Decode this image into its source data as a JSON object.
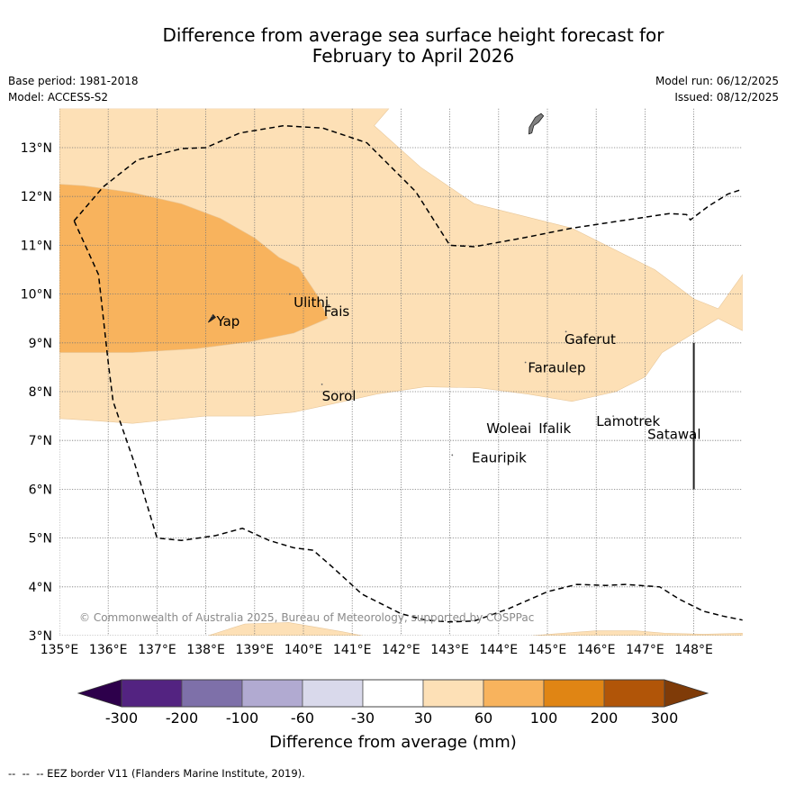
{
  "title": {
    "line1": "Difference from average sea surface height forecast for",
    "line2": "February to April 2026"
  },
  "meta": {
    "base_period": "Base period: 1981-2018",
    "model": "Model: ACCESS-S2",
    "model_run": "Model run: 06/12/2025",
    "issued": "Issued: 08/12/2025"
  },
  "footer": "--  --  -- EEZ border V11 (Flanders Marine Institute, 2019).",
  "chart_data": {
    "type": "heatmap",
    "title": "Difference from average sea surface height forecast for February to April 2026",
    "extent": {
      "lon": [
        135,
        149
      ],
      "lat": [
        3,
        13.8
      ]
    },
    "grid": true,
    "x_ticks": [
      {
        "value": 135,
        "label": "135°E"
      },
      {
        "value": 136,
        "label": "136°E"
      },
      {
        "value": 137,
        "label": "137°E"
      },
      {
        "value": 138,
        "label": "138°E"
      },
      {
        "value": 139,
        "label": "139°E"
      },
      {
        "value": 140,
        "label": "140°E"
      },
      {
        "value": 141,
        "label": "141°E"
      },
      {
        "value": 142,
        "label": "142°E"
      },
      {
        "value": 143,
        "label": "143°E"
      },
      {
        "value": 144,
        "label": "144°E"
      },
      {
        "value": 145,
        "label": "145°E"
      },
      {
        "value": 146,
        "label": "146°E"
      },
      {
        "value": 147,
        "label": "147°E"
      },
      {
        "value": 148,
        "label": "148°E"
      }
    ],
    "y_ticks": [
      {
        "value": 13,
        "label": "13°N"
      },
      {
        "value": 12,
        "label": "12°N"
      },
      {
        "value": 11,
        "label": "11°N"
      },
      {
        "value": 10,
        "label": "10°N"
      },
      {
        "value": 9,
        "label": "9°N"
      },
      {
        "value": 8,
        "label": "8°N"
      },
      {
        "value": 7,
        "label": "7°N"
      },
      {
        "value": 6,
        "label": "6°N"
      },
      {
        "value": 5,
        "label": "5°N"
      },
      {
        "value": 4,
        "label": "4°N"
      },
      {
        "value": 3,
        "label": "3°N"
      }
    ],
    "regions": [
      {
        "name": "30-60mm-north",
        "category": "30 to 60",
        "color": "#fde0b6",
        "polygon": [
          [
            135,
            13.8
          ],
          [
            141.75,
            13.8
          ],
          [
            141.45,
            13.45
          ],
          [
            142.4,
            12.6
          ],
          [
            143.5,
            11.85
          ],
          [
            145.5,
            11.35
          ],
          [
            147.2,
            10.5
          ],
          [
            148.0,
            9.9
          ],
          [
            148.5,
            9.7
          ],
          [
            149,
            10.4
          ],
          [
            149,
            9.25
          ],
          [
            148.5,
            9.5
          ],
          [
            148.0,
            9.2
          ],
          [
            147.35,
            8.8
          ],
          [
            147.0,
            8.3
          ],
          [
            146.4,
            8.0
          ],
          [
            145.5,
            7.8
          ],
          [
            144.6,
            7.95
          ],
          [
            143.6,
            8.08
          ],
          [
            142.5,
            8.1
          ],
          [
            141.5,
            7.95
          ],
          [
            140.6,
            7.75
          ],
          [
            139.8,
            7.58
          ],
          [
            139.0,
            7.5
          ],
          [
            138.0,
            7.5
          ],
          [
            137.0,
            7.4
          ],
          [
            136.5,
            7.35
          ],
          [
            135.5,
            7.42
          ],
          [
            135,
            7.45
          ]
        ]
      },
      {
        "name": "60-100mm",
        "category": "60 to 100",
        "color": "#f8b35d",
        "polygon": [
          [
            135,
            12.25
          ],
          [
            135.5,
            12.22
          ],
          [
            136.5,
            12.08
          ],
          [
            137.5,
            11.85
          ],
          [
            138.3,
            11.55
          ],
          [
            139.0,
            11.15
          ],
          [
            139.5,
            10.75
          ],
          [
            139.9,
            10.55
          ],
          [
            140.3,
            9.95
          ],
          [
            140.5,
            9.5
          ],
          [
            139.8,
            9.2
          ],
          [
            138.9,
            9.02
          ],
          [
            137.8,
            8.88
          ],
          [
            136.5,
            8.8
          ],
          [
            135.6,
            8.8
          ],
          [
            135,
            8.8
          ]
        ]
      },
      {
        "name": "30-60mm-south-west",
        "category": "30 to 60",
        "color": "#fde0b6",
        "polygon": [
          [
            138.05,
            3
          ],
          [
            138.8,
            3.24
          ],
          [
            139.7,
            3.27
          ],
          [
            140.8,
            3.08
          ],
          [
            141.2,
            3
          ]
        ]
      },
      {
        "name": "30-60mm-south-east",
        "category": "30 to 60",
        "color": "#fde0b6",
        "polygon": [
          [
            144.7,
            3
          ],
          [
            145.2,
            3.04
          ],
          [
            146.0,
            3.1
          ],
          [
            146.8,
            3.1
          ],
          [
            147.4,
            3.05
          ],
          [
            148.2,
            3.03
          ],
          [
            149,
            3.05
          ],
          [
            149,
            3
          ]
        ]
      }
    ],
    "eez_borders": [
      {
        "name": "eez-line-north",
        "points": [
          [
            135.3,
            11.5
          ],
          [
            135.9,
            12.2
          ],
          [
            136.6,
            12.75
          ],
          [
            137.5,
            12.98
          ],
          [
            138.0,
            13.0
          ],
          [
            138.7,
            13.3
          ],
          [
            139.6,
            13.45
          ],
          [
            140.4,
            13.4
          ],
          [
            141.3,
            13.1
          ],
          [
            142.3,
            12.1
          ],
          [
            143.0,
            11.0
          ],
          [
            143.5,
            10.97
          ],
          [
            144.5,
            11.15
          ],
          [
            145.5,
            11.35
          ],
          [
            146.5,
            11.5
          ],
          [
            147.5,
            11.65
          ],
          [
            147.85,
            11.63
          ],
          [
            147.93,
            11.52
          ],
          [
            148.3,
            11.8
          ],
          [
            148.7,
            12.05
          ],
          [
            149,
            12.15
          ]
        ]
      },
      {
        "name": "eez-line-west-south",
        "points": [
          [
            135.3,
            11.5
          ],
          [
            135.8,
            10.4
          ],
          [
            136.0,
            8.6
          ],
          [
            136.1,
            7.8
          ],
          [
            136.55,
            6.5
          ],
          [
            137.0,
            5.0
          ],
          [
            137.5,
            4.95
          ],
          [
            138.2,
            5.05
          ],
          [
            138.75,
            5.2
          ],
          [
            139.3,
            4.95
          ],
          [
            139.8,
            4.8
          ],
          [
            140.2,
            4.75
          ],
          [
            140.6,
            4.4
          ],
          [
            141.2,
            3.85
          ],
          [
            142.0,
            3.45
          ],
          [
            142.5,
            3.32
          ],
          [
            143.0,
            3.28
          ],
          [
            143.5,
            3.3
          ],
          [
            144.2,
            3.55
          ],
          [
            145.0,
            3.9
          ],
          [
            145.6,
            4.05
          ],
          [
            146.2,
            4.03
          ],
          [
            146.6,
            4.05
          ],
          [
            147.3,
            4.0
          ],
          [
            147.7,
            3.75
          ],
          [
            148.2,
            3.5
          ],
          [
            148.6,
            3.4
          ],
          [
            149,
            3.32
          ]
        ]
      }
    ],
    "land": [
      {
        "name": "guam",
        "color": "#808080",
        "polygon": [
          [
            144.65,
            13.45
          ],
          [
            144.75,
            13.62
          ],
          [
            144.87,
            13.7
          ],
          [
            144.92,
            13.65
          ],
          [
            144.82,
            13.52
          ],
          [
            144.72,
            13.45
          ],
          [
            144.68,
            13.3
          ],
          [
            144.62,
            13.28
          ],
          [
            144.63,
            13.42
          ]
        ]
      },
      {
        "name": "yap",
        "color": "#222222",
        "polygon": [
          [
            138.05,
            9.42
          ],
          [
            138.15,
            9.58
          ],
          [
            138.2,
            9.52
          ],
          [
            138.1,
            9.45
          ]
        ]
      }
    ],
    "vertical_line": {
      "lon": 148,
      "lat": [
        6,
        9
      ]
    },
    "places": [
      {
        "name": "Yap",
        "lon": 138.13,
        "lat": 9.55,
        "label_lon": 138.22,
        "label_lat": 9.35
      },
      {
        "name": "Ulithi",
        "lon": 139.72,
        "lat": 10.0,
        "label_lon": 139.8,
        "label_lat": 9.73
      },
      {
        "name": "Fais",
        "lon": 140.52,
        "lat": 9.77,
        "label_lon": 140.42,
        "label_lat": 9.55
      },
      {
        "name": "Sorol",
        "lon": 140.38,
        "lat": 8.15,
        "label_lon": 140.38,
        "label_lat": 7.82
      },
      {
        "name": "Gaferut",
        "lon": 145.38,
        "lat": 9.23,
        "label_lon": 145.35,
        "label_lat": 8.98
      },
      {
        "name": "Faraulep",
        "lon": 144.55,
        "lat": 8.6,
        "label_lon": 144.6,
        "label_lat": 8.4
      },
      {
        "name": "Woleai",
        "lon": 143.9,
        "lat": 7.35,
        "label_lon": 143.75,
        "label_lat": 7.15
      },
      {
        "name": "Ifalik",
        "lon": 144.45,
        "lat": 7.25,
        "label_lon": 144.82,
        "label_lat": 7.15
      },
      {
        "name": "Eauripik",
        "lon": 143.05,
        "lat": 6.7,
        "label_lon": 143.45,
        "label_lat": 6.55
      },
      {
        "name": "Lamotrek",
        "lon": 146.35,
        "lat": 7.5,
        "label_lon": 146.0,
        "label_lat": 7.3
      },
      {
        "name": "Satawal",
        "lon": 147.05,
        "lat": 7.35,
        "label_lon": 147.05,
        "label_lat": 7.03
      }
    ],
    "annotation": "© Commonwealth of Australia 2025, Bureau of Meteorology, supported by COSPPac",
    "colorbar": {
      "label": "Difference from average (mm)",
      "extend": "both",
      "boundaries": [
        -300,
        -200,
        -100,
        -60,
        -30,
        30,
        60,
        100,
        200,
        300
      ],
      "tick_labels": [
        "-300",
        "-200",
        "-100",
        "-60",
        "-30",
        "30",
        "60",
        "100",
        "200",
        "300"
      ],
      "colors": [
        "#532381",
        "#7e70a9",
        "#b1aad1",
        "#d9d9eb",
        "#ffffff",
        "#fde0b6",
        "#f8b35d",
        "#e08514",
        "#b15508"
      ],
      "under_color": "#2d004b",
      "over_color": "#7f3b08"
    }
  }
}
